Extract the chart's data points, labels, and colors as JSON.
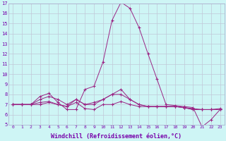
{
  "xlabel": "Windchill (Refroidissement éolien,°C)",
  "background_color": "#cef5f5",
  "grid_color": "#c0c8d8",
  "line_color": "#9b2585",
  "x": [
    0,
    1,
    2,
    3,
    4,
    5,
    6,
    7,
    8,
    9,
    10,
    11,
    12,
    13,
    14,
    15,
    16,
    17,
    18,
    19,
    20,
    21,
    22,
    23
  ],
  "series": [
    [
      7.0,
      7.0,
      7.0,
      7.8,
      8.1,
      7.2,
      6.5,
      6.5,
      8.5,
      8.8,
      11.2,
      15.3,
      17.1,
      16.5,
      14.6,
      12.0,
      9.5,
      7.0,
      6.9,
      6.8,
      6.7,
      4.8,
      5.5,
      6.5
    ],
    [
      7.0,
      7.0,
      7.0,
      7.5,
      7.8,
      7.5,
      7.0,
      7.5,
      7.0,
      7.2,
      7.5,
      8.0,
      8.5,
      7.5,
      7.0,
      6.8,
      6.8,
      6.8,
      6.8,
      6.7,
      6.6,
      6.5,
      6.5,
      6.6
    ],
    [
      7.0,
      7.0,
      7.0,
      7.2,
      7.3,
      7.0,
      6.8,
      7.2,
      6.6,
      6.5,
      7.0,
      7.0,
      7.3,
      7.0,
      6.8,
      6.8,
      6.8,
      6.8,
      6.8,
      6.7,
      6.5,
      6.5,
      6.5,
      6.5
    ],
    [
      7.0,
      7.0,
      7.0,
      7.0,
      7.2,
      7.0,
      6.8,
      7.5,
      7.0,
      7.0,
      7.5,
      8.0,
      8.0,
      7.5,
      7.0,
      6.8,
      6.8,
      6.8,
      6.8,
      6.7,
      6.5,
      6.5,
      6.5,
      6.5
    ]
  ],
  "ylim": [
    5,
    17
  ],
  "yticks": [
    5,
    6,
    7,
    8,
    9,
    10,
    11,
    12,
    13,
    14,
    15,
    16,
    17
  ],
  "xticks": [
    0,
    1,
    2,
    3,
    4,
    5,
    6,
    7,
    8,
    9,
    10,
    11,
    12,
    13,
    14,
    15,
    16,
    17,
    18,
    19,
    20,
    21,
    22,
    23
  ],
  "xtick_labels": [
    "0",
    "1",
    "2",
    "3",
    "4",
    "5",
    "6",
    "7",
    "8",
    "9",
    "10",
    "11",
    "12",
    "13",
    "14",
    "15",
    "16",
    "17",
    "18",
    "19",
    "20",
    "21",
    "22",
    "23"
  ]
}
